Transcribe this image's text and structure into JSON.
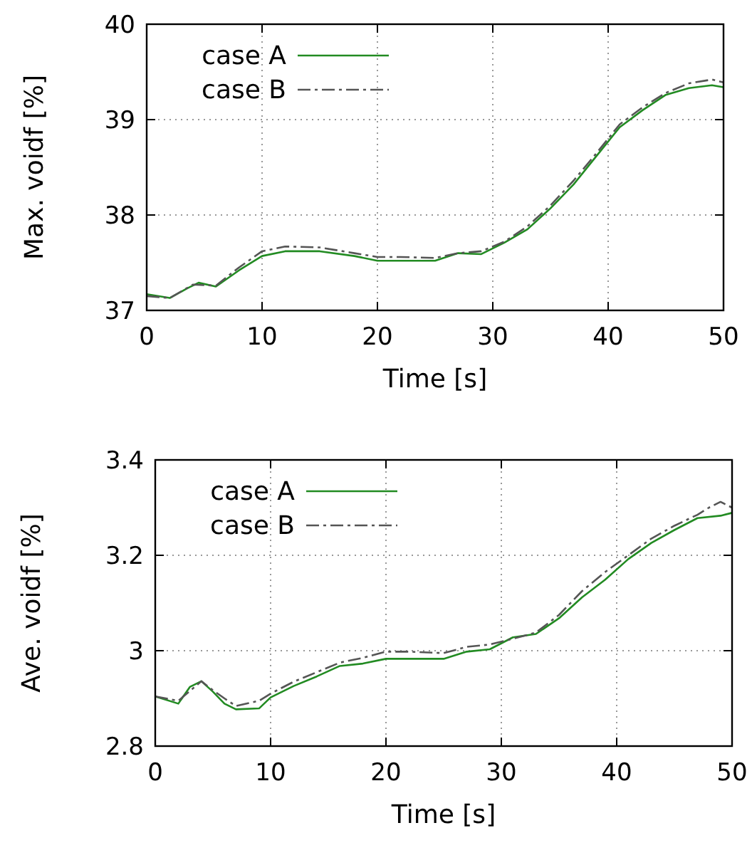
{
  "chart_data": [
    {
      "type": "line",
      "xlabel": "Time [s]",
      "ylabel": "Max. voidf [%]",
      "xlim": [
        0,
        50
      ],
      "ylim": [
        37,
        40
      ],
      "xticks": [
        0,
        10,
        20,
        30,
        40,
        50
      ],
      "yticks": [
        37,
        38,
        39,
        40
      ],
      "grid": true,
      "legend": "top left",
      "series": [
        {
          "name": "case A",
          "color": "#228b22",
          "line_style": "solid",
          "x": [
            0,
            2,
            3.5,
            4.5,
            6,
            8,
            10,
            12,
            15,
            18,
            20,
            22,
            25,
            27,
            29,
            31,
            33,
            35,
            37,
            39,
            41,
            43,
            45,
            47,
            49,
            50
          ],
          "values": [
            37.17,
            37.13,
            37.23,
            37.29,
            37.25,
            37.42,
            37.57,
            37.62,
            37.62,
            37.57,
            37.52,
            37.52,
            37.52,
            37.6,
            37.59,
            37.71,
            37.85,
            38.07,
            38.32,
            38.62,
            38.92,
            39.1,
            39.26,
            39.33,
            39.36,
            39.34
          ]
        },
        {
          "name": "case B",
          "color": "#555555",
          "line_style": "dashed",
          "x": [
            0,
            2,
            4,
            6,
            8,
            10,
            12,
            15,
            18,
            20,
            22,
            25,
            27,
            29,
            31,
            33,
            35,
            37,
            39,
            41,
            43,
            45,
            47,
            49,
            50
          ],
          "values": [
            37.15,
            37.13,
            37.27,
            37.26,
            37.45,
            37.62,
            37.67,
            37.66,
            37.6,
            37.56,
            37.56,
            37.55,
            37.6,
            37.62,
            37.72,
            37.88,
            38.1,
            38.36,
            38.65,
            38.95,
            39.13,
            39.28,
            39.38,
            39.42,
            39.39
          ]
        }
      ]
    },
    {
      "type": "line",
      "xlabel": "Time [s]",
      "ylabel": "Ave. voidf [%]",
      "xlim": [
        0,
        50
      ],
      "ylim": [
        2.8,
        3.4
      ],
      "xticks": [
        0,
        10,
        20,
        30,
        40,
        50
      ],
      "yticks": [
        {
          "value": 2.8,
          "label": "2.8"
        },
        {
          "value": 3,
          "label": "3"
        },
        {
          "value": 3.2,
          "label": "3.2"
        },
        {
          "value": 3.4,
          "label": "3.4"
        }
      ],
      "grid": true,
      "legend": "top left",
      "series": [
        {
          "name": "case A",
          "color": "#228b22",
          "line_style": "solid",
          "x": [
            0,
            2,
            3,
            4,
            5,
            6,
            7,
            9,
            10,
            12,
            14,
            16,
            18,
            20,
            22,
            25,
            27,
            29,
            31,
            33,
            35,
            37,
            39,
            41,
            43,
            45,
            47,
            49,
            50
          ],
          "values": [
            2.904,
            2.889,
            2.924,
            2.936,
            2.914,
            2.889,
            2.877,
            2.879,
            2.902,
            2.926,
            2.946,
            2.968,
            2.973,
            2.983,
            2.983,
            2.983,
            2.998,
            3.003,
            3.028,
            3.035,
            3.068,
            3.112,
            3.149,
            3.192,
            3.226,
            3.253,
            3.278,
            3.283,
            3.289
          ]
        },
        {
          "name": "case B",
          "color": "#555555",
          "line_style": "dashed",
          "x": [
            0,
            2,
            4,
            5,
            6,
            7,
            9,
            10,
            12,
            14,
            16,
            18,
            20,
            22,
            25,
            27,
            29,
            31,
            33,
            35,
            37,
            39,
            41,
            43,
            45,
            47,
            48,
            49,
            50
          ],
          "values": [
            2.904,
            2.895,
            2.936,
            2.917,
            2.9,
            2.884,
            2.895,
            2.91,
            2.935,
            2.955,
            2.975,
            2.985,
            2.998,
            2.998,
            2.995,
            3.008,
            3.013,
            3.025,
            3.038,
            3.075,
            3.125,
            3.165,
            3.2,
            3.235,
            3.262,
            3.285,
            3.3,
            3.312,
            3.3
          ]
        }
      ]
    }
  ]
}
